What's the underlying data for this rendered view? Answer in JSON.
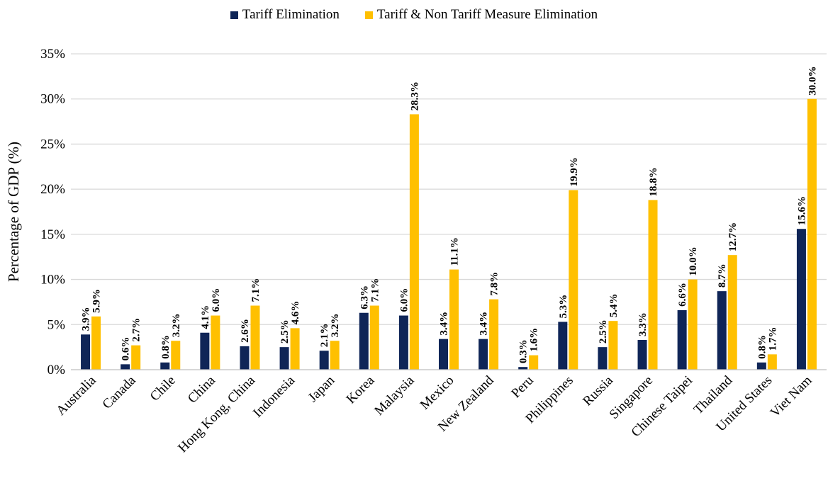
{
  "chart_data": {
    "type": "bar",
    "title": "",
    "xlabel": "",
    "ylabel": "Percentage of GDP (%)",
    "ylim": [
      0,
      35
    ],
    "y_tick_values": [
      0,
      5,
      10,
      15,
      20,
      25,
      30,
      35
    ],
    "y_tick_labels": [
      "0%",
      "5%",
      "10%",
      "15%",
      "20%",
      "25%",
      "30%",
      "35%"
    ],
    "grid": "horizontal",
    "legend_position": "top",
    "categories": [
      "Australia",
      "Canada",
      "Chile",
      "China",
      "Hong Kong, China",
      "Indonesia",
      "Japan",
      "Korea",
      "Malaysia",
      "Mexico",
      "New Zealand",
      "Peru",
      "Philippines",
      "Russia",
      "Singapore",
      "Chinese Taipei",
      "Thailand",
      "United States",
      "Viet Nam"
    ],
    "series": [
      {
        "name": "Tariff Elimination",
        "color": "#0f2557",
        "values": [
          3.9,
          0.6,
          0.8,
          4.1,
          2.6,
          2.5,
          2.1,
          6.3,
          6.0,
          3.4,
          3.4,
          0.3,
          5.3,
          2.5,
          3.3,
          6.6,
          8.7,
          0.8,
          15.6
        ],
        "labels": [
          "3.9%",
          "0.6%",
          "0.8%",
          "4.1%",
          "2.6%",
          "2.5%",
          "2.1%",
          "6.3%",
          "6.0%",
          "3.4%",
          "3.4%",
          "0.3%",
          "5.3%",
          "2.5%",
          "3.3%",
          "6.6%",
          "8.7%",
          "0.8%",
          "15.6%"
        ]
      },
      {
        "name": "Tariff & Non Tariff Measure Elimination",
        "color": "#ffc000",
        "values": [
          5.9,
          2.7,
          3.2,
          6.0,
          7.1,
          4.6,
          3.2,
          7.1,
          28.3,
          11.1,
          7.8,
          1.6,
          19.9,
          5.4,
          18.8,
          10.0,
          12.7,
          1.7,
          30.0
        ],
        "labels": [
          "5.9%",
          "2.7%",
          "3.2%",
          "6.0%",
          "7.1%",
          "4.6%",
          "3.2%",
          "7.1%",
          "28.3%",
          "11.1%",
          "7.8%",
          "1.6%",
          "19.9%",
          "5.4%",
          "18.8%",
          "10.0%",
          "12.7%",
          "1.7%",
          "30.0%"
        ]
      }
    ]
  }
}
